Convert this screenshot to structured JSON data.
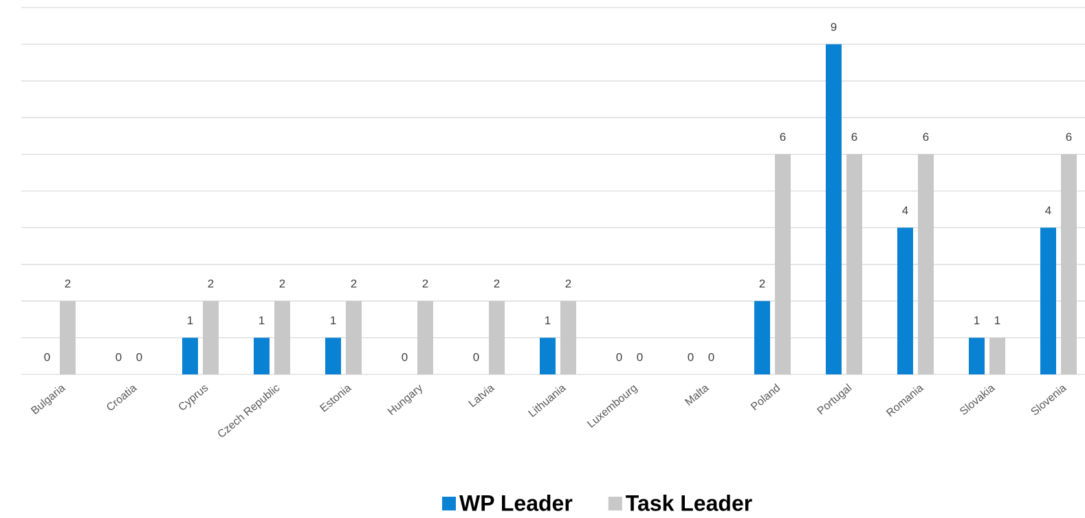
{
  "chart_data": {
    "type": "bar",
    "categories": [
      "Bulgaria",
      "Croatia",
      "Cyprus",
      "Czech Republic",
      "Estonia",
      "Hungary",
      "Latvia",
      "Lithuania",
      "Luxembourg",
      "Malta",
      "Poland",
      "Portugal",
      "Romania",
      "Slovakia",
      "Slovenia"
    ],
    "series": [
      {
        "name": "WP Leader",
        "color": "#0a82d3",
        "values": [
          0,
          0,
          1,
          1,
          1,
          0,
          0,
          1,
          0,
          0,
          2,
          9,
          4,
          1,
          4
        ]
      },
      {
        "name": "Task Leader",
        "color": "#c8c8c8",
        "values": [
          2,
          0,
          2,
          2,
          2,
          2,
          2,
          2,
          0,
          0,
          6,
          6,
          6,
          1,
          6
        ]
      }
    ],
    "ylim": [
      0,
      10
    ],
    "yticks": [
      0,
      1,
      2,
      3,
      4,
      5,
      6,
      7,
      8,
      9,
      10
    ],
    "grid": true,
    "legend": "bottom"
  }
}
